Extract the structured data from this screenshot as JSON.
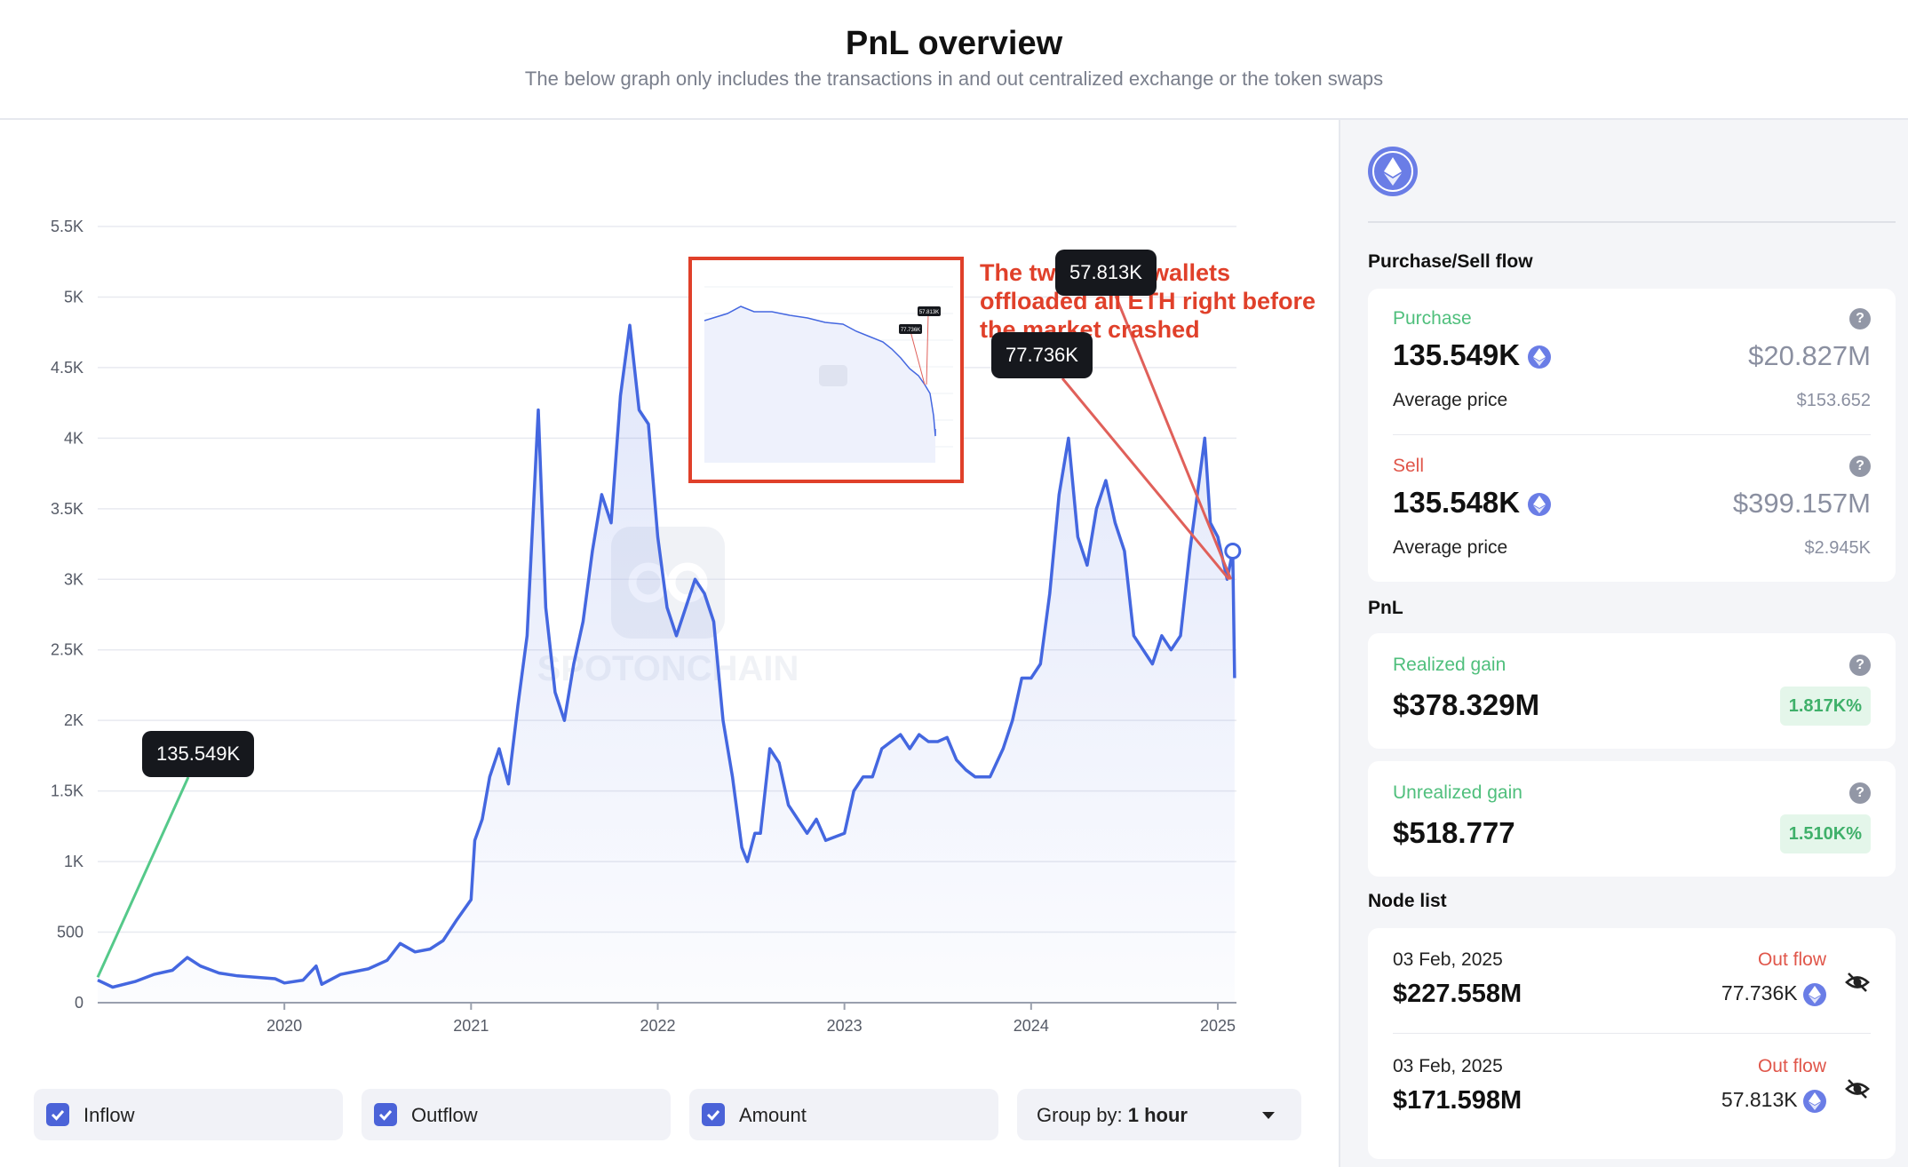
{
  "header": {
    "title": "PnL overview",
    "subtitle": "The below graph only includes the transactions in and out centralized exchange or the token swaps"
  },
  "annotation": {
    "text": "The two whale wallets offloaded all ETH right before the market crashed",
    "inset_callouts": [
      "77.736K",
      "57.813K"
    ]
  },
  "chart_data": {
    "type": "area",
    "x_ticks": [
      "2020",
      "2021",
      "2022",
      "2023",
      "2024",
      "2025"
    ],
    "y_ticks": [
      "0",
      "500",
      "1K",
      "1.5K",
      "2K",
      "2.5K",
      "3K",
      "3.5K",
      "4K",
      "4.5K",
      "5K",
      "5.5K"
    ],
    "ylim": [
      0,
      5500
    ],
    "xlim": [
      2019.0,
      2025.1
    ],
    "grid": true,
    "watermark": "SPOTONCHAIN",
    "series": [
      {
        "color": "#4467e0",
        "points": [
          [
            2019.0,
            160
          ],
          [
            2019.08,
            110
          ],
          [
            2019.2,
            150
          ],
          [
            2019.3,
            200
          ],
          [
            2019.4,
            230
          ],
          [
            2019.48,
            320
          ],
          [
            2019.55,
            260
          ],
          [
            2019.65,
            210
          ],
          [
            2019.75,
            190
          ],
          [
            2019.85,
            180
          ],
          [
            2019.95,
            170
          ],
          [
            2020.0,
            140
          ],
          [
            2020.1,
            160
          ],
          [
            2020.17,
            260
          ],
          [
            2020.2,
            130
          ],
          [
            2020.3,
            200
          ],
          [
            2020.45,
            240
          ],
          [
            2020.55,
            300
          ],
          [
            2020.62,
            420
          ],
          [
            2020.7,
            360
          ],
          [
            2020.78,
            380
          ],
          [
            2020.85,
            440
          ],
          [
            2020.92,
            580
          ],
          [
            2021.0,
            730
          ],
          [
            2021.02,
            1150
          ],
          [
            2021.06,
            1300
          ],
          [
            2021.1,
            1600
          ],
          [
            2021.15,
            1800
          ],
          [
            2021.2,
            1550
          ],
          [
            2021.25,
            2100
          ],
          [
            2021.3,
            2600
          ],
          [
            2021.33,
            3400
          ],
          [
            2021.36,
            4200
          ],
          [
            2021.4,
            2800
          ],
          [
            2021.45,
            2200
          ],
          [
            2021.5,
            2000
          ],
          [
            2021.55,
            2400
          ],
          [
            2021.6,
            2700
          ],
          [
            2021.65,
            3200
          ],
          [
            2021.7,
            3600
          ],
          [
            2021.75,
            3400
          ],
          [
            2021.8,
            4300
          ],
          [
            2021.85,
            4800
          ],
          [
            2021.9,
            4200
          ],
          [
            2021.95,
            4100
          ],
          [
            2022.0,
            3300
          ],
          [
            2022.05,
            2800
          ],
          [
            2022.1,
            2600
          ],
          [
            2022.15,
            2800
          ],
          [
            2022.2,
            3000
          ],
          [
            2022.25,
            2900
          ],
          [
            2022.3,
            2700
          ],
          [
            2022.35,
            2000
          ],
          [
            2022.4,
            1600
          ],
          [
            2022.45,
            1100
          ],
          [
            2022.48,
            1000
          ],
          [
            2022.52,
            1200
          ],
          [
            2022.55,
            1200
          ],
          [
            2022.6,
            1800
          ],
          [
            2022.65,
            1700
          ],
          [
            2022.7,
            1400
          ],
          [
            2022.75,
            1300
          ],
          [
            2022.8,
            1200
          ],
          [
            2022.85,
            1300
          ],
          [
            2022.9,
            1150
          ],
          [
            2023.0,
            1200
          ],
          [
            2023.05,
            1500
          ],
          [
            2023.1,
            1600
          ],
          [
            2023.15,
            1600
          ],
          [
            2023.2,
            1800
          ],
          [
            2023.25,
            1850
          ],
          [
            2023.3,
            1900
          ],
          [
            2023.35,
            1800
          ],
          [
            2023.4,
            1900
          ],
          [
            2023.45,
            1850
          ],
          [
            2023.5,
            1850
          ],
          [
            2023.55,
            1880
          ],
          [
            2023.6,
            1720
          ],
          [
            2023.65,
            1650
          ],
          [
            2023.7,
            1600
          ],
          [
            2023.78,
            1600
          ],
          [
            2023.85,
            1800
          ],
          [
            2023.9,
            2000
          ],
          [
            2023.95,
            2300
          ],
          [
            2024.0,
            2300
          ],
          [
            2024.05,
            2400
          ],
          [
            2024.1,
            2900
          ],
          [
            2024.15,
            3600
          ],
          [
            2024.2,
            4000
          ],
          [
            2024.25,
            3300
          ],
          [
            2024.3,
            3100
          ],
          [
            2024.35,
            3500
          ],
          [
            2024.4,
            3700
          ],
          [
            2024.45,
            3400
          ],
          [
            2024.5,
            3200
          ],
          [
            2024.55,
            2600
          ],
          [
            2024.6,
            2500
          ],
          [
            2024.65,
            2400
          ],
          [
            2024.7,
            2600
          ],
          [
            2024.75,
            2500
          ],
          [
            2024.8,
            2600
          ],
          [
            2024.85,
            3200
          ],
          [
            2024.9,
            3700
          ],
          [
            2024.93,
            4000
          ],
          [
            2024.96,
            3400
          ],
          [
            2025.0,
            3300
          ],
          [
            2025.05,
            3000
          ],
          [
            2025.08,
            3200
          ],
          [
            2025.09,
            2300
          ]
        ]
      }
    ],
    "callouts": [
      {
        "label": "135.549K",
        "x": 2019.0,
        "y": 180,
        "line": "#55c98a"
      },
      {
        "label": "77.736K",
        "x": 2025.06,
        "y": 3000,
        "line": "#e0605a"
      },
      {
        "label": "57.813K",
        "x": 2025.07,
        "y": 3000,
        "line": "#e0605a"
      }
    ]
  },
  "controls": {
    "inflow": "Inflow",
    "outflow": "Outflow",
    "amount": "Amount",
    "group_prefix": "Group by: ",
    "group_value": "1 hour"
  },
  "sidebar": {
    "flow_title": "Purchase/Sell flow",
    "purchase": {
      "label": "Purchase",
      "eth": "135.549K",
      "usd": "$20.827M",
      "avg_label": "Average price",
      "avg": "$153.652"
    },
    "sell": {
      "label": "Sell",
      "eth": "135.548K",
      "usd": "$399.157M",
      "avg_label": "Average price",
      "avg": "$2.945K"
    },
    "pnl_title": "PnL",
    "realized": {
      "label": "Realized gain",
      "value": "$378.329M",
      "pct": "1.817K%"
    },
    "unrealized": {
      "label": "Unrealized gain",
      "value": "$518.777",
      "pct": "1.510K%"
    },
    "node_title": "Node list",
    "nodes": [
      {
        "date": "03 Feb, 2025",
        "flow": "Out flow",
        "usd": "$227.558M",
        "eth": "77.736K"
      },
      {
        "date": "03 Feb, 2025",
        "flow": "Out flow",
        "usd": "$171.598M",
        "eth": "57.813K"
      }
    ],
    "help": "?"
  },
  "colors": {
    "line": "#4467e0",
    "accent": "#e0402a",
    "green": "#4fbf7c",
    "red": "#e0564a",
    "eth": "#6a7de6"
  }
}
